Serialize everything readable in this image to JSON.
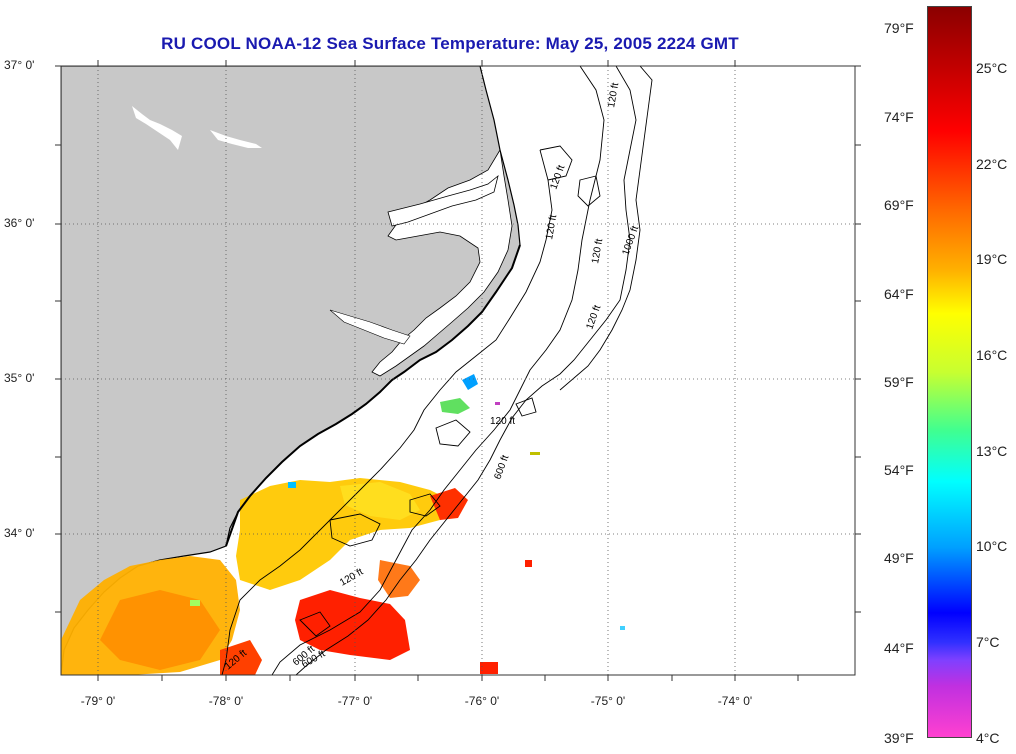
{
  "title": "RU COOL  NOAA-12  Sea Surface Temperature:  May 25, 2005 2224 GMT",
  "lat_labels": [
    "37° 0'",
    "36° 0'",
    "35° 0'",
    "34° 0'"
  ],
  "lon_labels": [
    "-79° 0'",
    "-78° 0'",
    "-77° 0'",
    "-76° 0'",
    "-75° 0'",
    "-74° 0'"
  ],
  "isobath_labels": [
    "120 ft",
    "120 ft",
    "120 ft",
    "120 ft",
    "120 ft",
    "600 ft",
    "120 ft",
    "600 ft",
    "120 ft",
    "120 ft",
    "600 ft",
    "1000 ft"
  ],
  "colorbar": {
    "fahrenheit": [
      "79°F",
      "74°F",
      "69°F",
      "64°F",
      "59°F",
      "54°F",
      "49°F",
      "44°F",
      "39°F"
    ],
    "celsius": [
      "25°C",
      "22°C",
      "19°C",
      "16°C",
      "13°C",
      "10°C",
      "7°C",
      "4°C"
    ]
  },
  "colors": {
    "land": "#c8c8c8",
    "title": "#1a1ab0",
    "warm": "#ff2000",
    "mid": "#ffb000"
  }
}
